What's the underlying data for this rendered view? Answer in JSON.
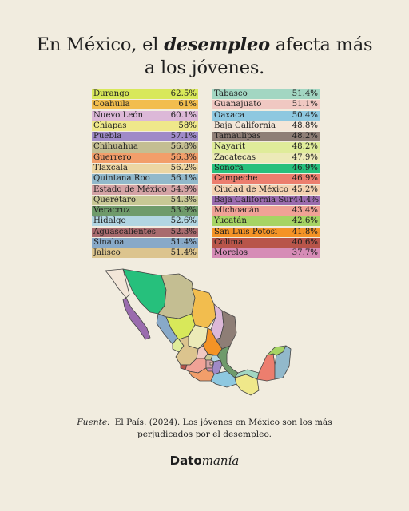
{
  "title": {
    "prefix": "En México, el ",
    "emphasis": "desempleo",
    "suffix": " afecta más",
    "line2": "a los jóvenes."
  },
  "table_left": [
    {
      "name": "Durango",
      "value": "62.5%",
      "color": "#d8e85a"
    },
    {
      "name": "Coahuila",
      "value": "61%",
      "color": "#f2bd4e"
    },
    {
      "name": "Nuevo León",
      "value": "60.1%",
      "color": "#dcb8d8"
    },
    {
      "name": "Chiapas",
      "value": "58%",
      "color": "#efe88a"
    },
    {
      "name": "Puebla",
      "value": "57.1%",
      "color": "#9f8ac8"
    },
    {
      "name": "Chihuahua",
      "value": "56.8%",
      "color": "#c4be92"
    },
    {
      "name": "Guerrero",
      "value": "56.3%",
      "color": "#f29e6a"
    },
    {
      "name": "Tlaxcala",
      "value": "56.2%",
      "color": "#ecd6a3"
    },
    {
      "name": "Quintana Roo",
      "value": "56.1%",
      "color": "#92b9cb"
    },
    {
      "name": "Estado de México",
      "value": "54.9%",
      "color": "#d4a3a5"
    },
    {
      "name": "Querétaro",
      "value": "54.3%",
      "color": "#c8c895"
    },
    {
      "name": "Veracruz",
      "value": "53.9%",
      "color": "#6f9b6b"
    },
    {
      "name": "Hidalgo",
      "value": "52.6%",
      "color": "#b2d6e2"
    },
    {
      "name": "Aguascalientes",
      "value": "52.3%",
      "color": "#a86b6e"
    },
    {
      "name": "Sinaloa",
      "value": "51.4%",
      "color": "#88a9c8"
    },
    {
      "name": "Jalisco",
      "value": "51.4%",
      "color": "#dcc48e"
    }
  ],
  "table_right": [
    {
      "name": "Tabasco",
      "value": "51.4%",
      "color": "#a2d6c2"
    },
    {
      "name": "Guanajuato",
      "value": "51.1%",
      "color": "#f0c8c2"
    },
    {
      "name": "Oaxaca",
      "value": "50.4%",
      "color": "#8ec8e0"
    },
    {
      "name": "Baja California",
      "value": "48.8%",
      "color": "#f3e6d8"
    },
    {
      "name": "Tamaulipas",
      "value": "48.2%",
      "color": "#8e7e76"
    },
    {
      "name": "Nayarit",
      "value": "48.2%",
      "color": "#dfec9a"
    },
    {
      "name": "Zacatecas",
      "value": "47.9%",
      "color": "#eceab8"
    },
    {
      "name": "Sonora",
      "value": "46.9%",
      "color": "#26c07c"
    },
    {
      "name": "Campeche",
      "value": "46.9%",
      "color": "#ec7e6e"
    },
    {
      "name": "Ciudad de México",
      "value": "45.2%",
      "color": "#f4d2b2"
    },
    {
      "name": "Baja California Sur",
      "value": "44.4%",
      "color": "#9a6cae"
    },
    {
      "name": "Michoacán",
      "value": "43.4%",
      "color": "#f0a296"
    },
    {
      "name": "Yucatán",
      "value": "42.6%",
      "color": "#a6d464"
    },
    {
      "name": "San Luis Potosí",
      "value": "41.8%",
      "color": "#f49326"
    },
    {
      "name": "Colima",
      "value": "40.6%",
      "color": "#b8554a"
    },
    {
      "name": "Morelos",
      "value": "37.7%",
      "color": "#d68cb6"
    }
  ],
  "map": {
    "outline_color": "#444444"
  },
  "source": {
    "label": "Fuente:",
    "line1": "El País. (2024). Los jóvenes en México son los más",
    "line2": "perjudicados por el desempleo."
  },
  "brand": {
    "part1": "Dato",
    "part2": "manía"
  }
}
